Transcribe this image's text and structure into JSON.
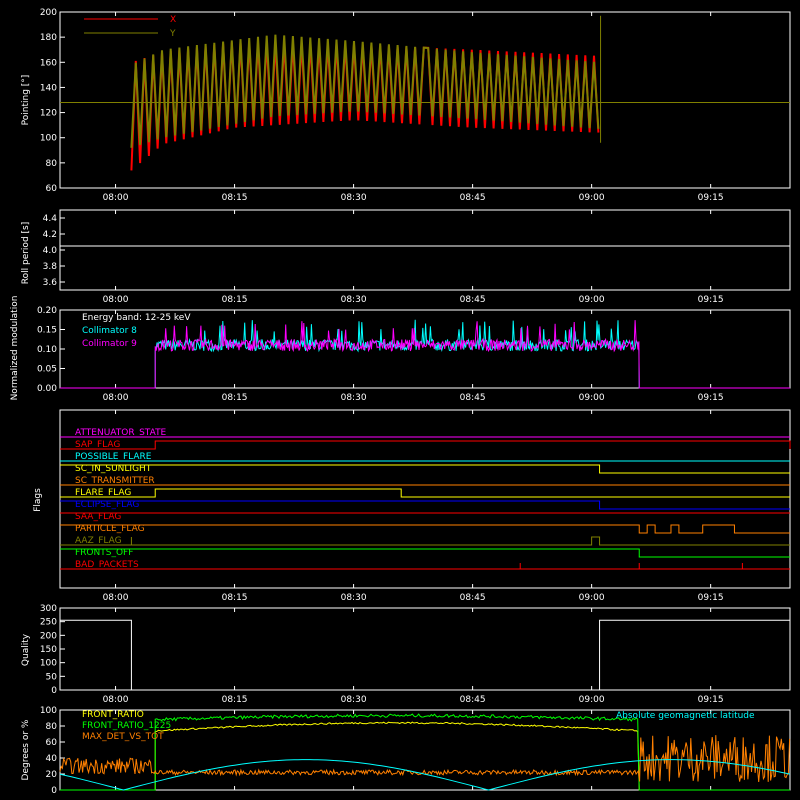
{
  "colors": {
    "background": "#000000",
    "axes": "#ffffff",
    "x": "#ff0000",
    "y": "#808000",
    "cyan": "#00ffff",
    "magenta": "#ff00ff",
    "green": "#00ff00",
    "yellow": "#ffff00",
    "orange": "#ff8000",
    "blue": "#0000ff",
    "red": "#ff0000",
    "white": "#ffffff"
  },
  "time_ticks": [
    "08:00",
    "08:15",
    "08:30",
    "08:45",
    "09:00",
    "09:15"
  ],
  "chart_data": [
    {
      "type": "line",
      "ylabel": "Pointing [°]",
      "ylim": [
        60,
        200
      ],
      "yticks": [
        "60",
        "80",
        "100",
        "120",
        "140",
        "160",
        "180",
        "200"
      ],
      "legend": [
        "X",
        "Y"
      ],
      "x_range": [
        "07:53",
        "09:25"
      ],
      "series": [
        {
          "name": "X",
          "envelope": [
            {
              "t": "08:02",
              "min": 74,
              "max": 160
            },
            {
              "t": "08:06",
              "min": 95,
              "max": 168
            },
            {
              "t": "08:15",
              "min": 108,
              "max": 176
            },
            {
              "t": "08:30",
              "min": 114,
              "max": 174
            },
            {
              "t": "08:45",
              "min": 108,
              "max": 170
            },
            {
              "t": "09:01",
              "min": 104,
              "max": 165
            }
          ]
        },
        {
          "name": "Y",
          "envelope": [
            {
              "t": "08:02",
              "min": 92,
              "max": 158
            },
            {
              "t": "08:06",
              "min": 100,
              "max": 170
            },
            {
              "t": "08:20",
              "min": 117,
              "max": 182
            },
            {
              "t": "08:30",
              "min": 121,
              "max": 177
            },
            {
              "t": "08:45",
              "min": 115,
              "max": 168
            },
            {
              "t": "09:01",
              "min": 107,
              "max": 160
            }
          ]
        }
      ],
      "constant_line": 128
    },
    {
      "type": "line",
      "ylabel": "Roll period [s]",
      "ylim": [
        3.5,
        4.5
      ],
      "yticks": [
        "3.6",
        "3.8",
        "4.0",
        "4.2",
        "4.4"
      ],
      "series": [
        {
          "name": "",
          "constant": 4.05
        }
      ]
    },
    {
      "type": "line",
      "ylabel": "Normalized modulation",
      "ylim": [
        0,
        0.2
      ],
      "yticks": [
        "0.00",
        "0.05",
        "0.10",
        "0.15",
        "0.20"
      ],
      "annotation": "Energy band: 12-25 keV",
      "legend": [
        "Collimator 8",
        "Collimator 9"
      ],
      "active_range": [
        "08:05",
        "09:06"
      ],
      "series": [
        {
          "name": "Collimator 8",
          "mean": 0.11,
          "noise": 0.015
        },
        {
          "name": "Collimator 9",
          "mean": 0.11,
          "noise": 0.015
        }
      ]
    },
    {
      "type": "line",
      "ylabel": "Flags",
      "flags": [
        {
          "name": "ATTENUATOR_STATE",
          "color": "#ff00ff"
        },
        {
          "name": "SAP_FLAG",
          "color": "#ff0000"
        },
        {
          "name": "POSSIBLE_FLARE",
          "color": "#00ffff"
        },
        {
          "name": "SC_IN_SUNLIGHT",
          "color": "#ffff00"
        },
        {
          "name": "SC_TRANSMITTER",
          "color": "#ff8000"
        },
        {
          "name": "FLARE_FLAG",
          "color": "#ffff00"
        },
        {
          "name": "ECLIPSE_FLAG",
          "color": "#0000ff"
        },
        {
          "name": "SAA_FLAG",
          "color": "#ff0000"
        },
        {
          "name": "PARTICLE_FLAG",
          "color": "#ff8000"
        },
        {
          "name": "AAZ_FLAG",
          "color": "#808000"
        },
        {
          "name": "FRONTS_OFF",
          "color": "#00ff00"
        },
        {
          "name": "BAD_PACKETS",
          "color": "#ff0000"
        }
      ]
    },
    {
      "type": "line",
      "ylabel": "Quality",
      "ylim": [
        0,
        300
      ],
      "yticks": [
        "0",
        "50",
        "100",
        "150",
        "200",
        "250",
        "300"
      ],
      "series": [
        {
          "name": "",
          "segments": [
            {
              "start": "07:53",
              "end": "08:02",
              "value": 255
            },
            {
              "start": "08:02",
              "end": "09:01",
              "value": 0
            },
            {
              "start": "09:01",
              "end": "09:25",
              "value": 255
            }
          ]
        }
      ]
    },
    {
      "type": "line",
      "ylabel": "Degrees or %",
      "ylim": [
        0,
        100
      ],
      "yticks": [
        "0",
        "20",
        "40",
        "60",
        "80",
        "100"
      ],
      "legend": [
        "FRONT_RATIO",
        "FRONT_RATIO_1225",
        "MAX_DET_VS_TOT"
      ],
      "annotation": "Absolute geomagnetic latitude",
      "series": [
        {
          "name": "FRONT_RATIO",
          "mean": 74
        },
        {
          "name": "FRONT_RATIO_1225",
          "mean": 88
        },
        {
          "name": "MAX_DET_VS_TOT",
          "mean": 22
        },
        {
          "name": "Absolute geomagnetic latitude",
          "min": 0,
          "max": 38
        }
      ]
    }
  ]
}
